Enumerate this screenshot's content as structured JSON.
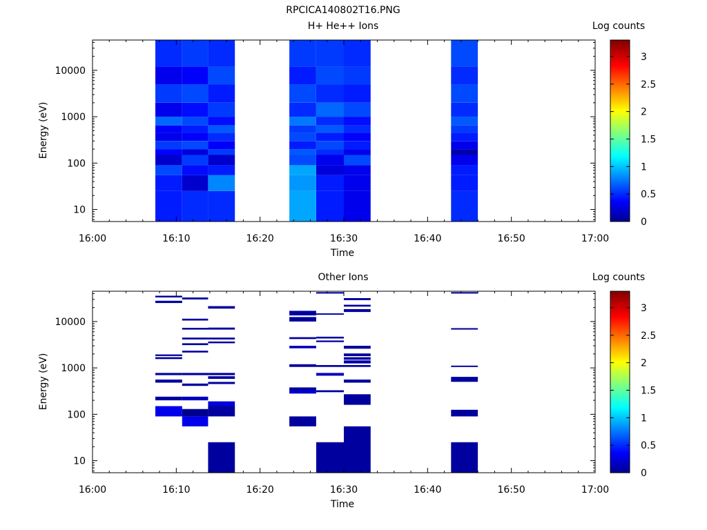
{
  "figure_title": "RPCICA140802T16.PNG",
  "chart_data": [
    {
      "type": "heatmap",
      "title": "H+ He++ Ions",
      "xlabel": "Time",
      "ylabel": "Energy (eV)",
      "colorbar_label": "Log counts",
      "x_ticks": [
        "16:00",
        "16:10",
        "16:20",
        "16:30",
        "16:40",
        "16:50",
        "17:00"
      ],
      "x_range_min": [
        0,
        60
      ],
      "y_scale": "log",
      "y_range": [
        5.5,
        45000
      ],
      "y_ticks": [
        10,
        100,
        1000,
        10000
      ],
      "y_tick_labels": [
        "10",
        "100",
        "1000",
        "10000"
      ],
      "colorbar_range": [
        0,
        3.3
      ],
      "colorbar_ticks": [
        "0",
        "0.5",
        "1",
        "1.5",
        "2",
        "2.5",
        "3"
      ],
      "colorbar_values": [
        0,
        0.5,
        1,
        1.5,
        2,
        2.5,
        3
      ],
      "time_bins_min": [
        [
          7.5,
          10.7
        ],
        [
          10.7,
          13.8
        ],
        [
          13.8,
          17
        ],
        [
          23.5,
          26.7
        ],
        [
          26.7,
          30
        ],
        [
          30,
          33.2
        ],
        [
          42.8,
          46
        ]
      ],
      "cells": [
        [
          [
            5.5,
            25,
            0.45
          ],
          [
            25,
            55,
            0.45
          ],
          [
            55,
            90,
            0.6
          ],
          [
            90,
            150,
            0.2
          ],
          [
            150,
            200,
            0.35
          ],
          [
            200,
            300,
            0.55
          ],
          [
            300,
            450,
            0.3
          ],
          [
            450,
            650,
            0.35
          ],
          [
            650,
            1000,
            0.7
          ],
          [
            1000,
            2000,
            0.3
          ],
          [
            2000,
            5000,
            0.55
          ],
          [
            5000,
            12000,
            0.3
          ],
          [
            12000,
            45000,
            0.5
          ]
        ],
        [
          [
            5.5,
            25,
            0.5
          ],
          [
            25,
            55,
            0.2
          ],
          [
            55,
            90,
            0.4
          ],
          [
            90,
            150,
            0.55
          ],
          [
            150,
            200,
            0.25
          ],
          [
            200,
            300,
            0.6
          ],
          [
            300,
            450,
            0.35
          ],
          [
            450,
            650,
            0.45
          ],
          [
            650,
            1000,
            0.6
          ],
          [
            1000,
            2000,
            0.4
          ],
          [
            2000,
            5000,
            0.6
          ],
          [
            5000,
            12000,
            0.35
          ],
          [
            12000,
            45000,
            0.55
          ]
        ],
        [
          [
            5.5,
            25,
            0.5
          ],
          [
            25,
            55,
            0.8
          ],
          [
            55,
            90,
            0.45
          ],
          [
            90,
            150,
            0.2
          ],
          [
            150,
            200,
            0.55
          ],
          [
            200,
            300,
            0.35
          ],
          [
            300,
            450,
            0.5
          ],
          [
            450,
            650,
            0.65
          ],
          [
            650,
            1000,
            0.4
          ],
          [
            1000,
            2000,
            0.55
          ],
          [
            2000,
            5000,
            0.45
          ],
          [
            5000,
            12000,
            0.6
          ],
          [
            12000,
            45000,
            0.5
          ]
        ],
        [
          [
            5.5,
            25,
            0.9
          ],
          [
            25,
            55,
            0.85
          ],
          [
            55,
            90,
            0.9
          ],
          [
            90,
            150,
            0.6
          ],
          [
            150,
            200,
            0.65
          ],
          [
            200,
            300,
            0.45
          ],
          [
            300,
            450,
            0.6
          ],
          [
            450,
            650,
            0.55
          ],
          [
            650,
            1000,
            0.75
          ],
          [
            1000,
            2000,
            0.5
          ],
          [
            2000,
            5000,
            0.6
          ],
          [
            5000,
            12000,
            0.45
          ],
          [
            12000,
            45000,
            0.55
          ]
        ],
        [
          [
            5.5,
            25,
            0.45
          ],
          [
            25,
            55,
            0.45
          ],
          [
            55,
            90,
            0.25
          ],
          [
            90,
            150,
            0.3
          ],
          [
            150,
            200,
            0.5
          ],
          [
            200,
            300,
            0.6
          ],
          [
            300,
            450,
            0.45
          ],
          [
            450,
            650,
            0.65
          ],
          [
            650,
            1000,
            0.5
          ],
          [
            1000,
            2000,
            0.7
          ],
          [
            2000,
            5000,
            0.5
          ],
          [
            5000,
            12000,
            0.6
          ],
          [
            12000,
            45000,
            0.55
          ]
        ],
        [
          [
            5.5,
            25,
            0.3
          ],
          [
            25,
            55,
            0.3
          ],
          [
            55,
            90,
            0.3
          ],
          [
            90,
            150,
            0.6
          ],
          [
            150,
            200,
            0.3
          ],
          [
            200,
            300,
            0.45
          ],
          [
            300,
            450,
            0.35
          ],
          [
            450,
            650,
            0.5
          ],
          [
            650,
            1000,
            0.4
          ],
          [
            1000,
            2000,
            0.6
          ],
          [
            2000,
            5000,
            0.45
          ],
          [
            5000,
            12000,
            0.55
          ],
          [
            12000,
            45000,
            0.5
          ]
        ],
        [
          [
            5.5,
            25,
            0.5
          ],
          [
            25,
            55,
            0.45
          ],
          [
            55,
            90,
            0.45
          ],
          [
            90,
            150,
            0.3
          ],
          [
            150,
            200,
            0.1
          ],
          [
            200,
            300,
            0.3
          ],
          [
            300,
            450,
            0.45
          ],
          [
            450,
            650,
            0.55
          ],
          [
            650,
            1000,
            0.65
          ],
          [
            1000,
            2000,
            0.5
          ],
          [
            2000,
            5000,
            0.6
          ],
          [
            5000,
            12000,
            0.5
          ],
          [
            12000,
            45000,
            0.6
          ]
        ]
      ]
    },
    {
      "type": "heatmap",
      "title": "Other Ions",
      "xlabel": "Time",
      "ylabel": "Energy (eV)",
      "colorbar_label": "Log counts",
      "x_ticks": [
        "16:00",
        "16:10",
        "16:20",
        "16:30",
        "16:40",
        "16:50",
        "17:00"
      ],
      "x_range_min": [
        0,
        60
      ],
      "y_scale": "log",
      "y_range": [
        5.5,
        45000
      ],
      "y_ticks": [
        10,
        100,
        1000,
        10000
      ],
      "y_tick_labels": [
        "10",
        "100",
        "1000",
        "10000"
      ],
      "colorbar_range": [
        0,
        3.3
      ],
      "colorbar_ticks": [
        "0",
        "0.5",
        "1",
        "1.5",
        "2",
        "2.5",
        "3"
      ],
      "colorbar_values": [
        0,
        0.5,
        1,
        1.5,
        2,
        2.5,
        3
      ],
      "time_bins_min": [
        [
          7.5,
          10.7
        ],
        [
          10.7,
          13.8
        ],
        [
          13.8,
          17
        ],
        [
          23.5,
          26.7
        ],
        [
          26.7,
          30
        ],
        [
          30,
          33.2
        ],
        [
          42.8,
          46
        ]
      ],
      "cells": [
        [
          [
            90,
            150,
            0.3
          ],
          [
            200,
            240,
            0.05
          ],
          [
            480,
            560,
            0.05
          ],
          [
            700,
            780,
            0.05
          ],
          [
            1550,
            1700,
            0.05
          ],
          [
            1800,
            1950,
            0.05
          ],
          [
            25000,
            28000,
            0.05
          ],
          [
            33000,
            36000,
            0.05
          ]
        ],
        [
          [
            55,
            90,
            0.3
          ],
          [
            90,
            130,
            0.0
          ],
          [
            200,
            240,
            0.15
          ],
          [
            410,
            460,
            0.05
          ],
          [
            700,
            780,
            0.05
          ],
          [
            2150,
            2350,
            0.05
          ],
          [
            3100,
            3400,
            0.05
          ],
          [
            4100,
            4500,
            0.05
          ],
          [
            6700,
            7300,
            0.05
          ],
          [
            10500,
            11500,
            0.05
          ],
          [
            30000,
            33000,
            0.05
          ]
        ],
        [
          [
            5.5,
            25,
            0.05
          ],
          [
            90,
            150,
            0.05
          ],
          [
            150,
            190,
            0.25
          ],
          [
            450,
            500,
            0.05
          ],
          [
            580,
            660,
            0.05
          ],
          [
            700,
            780,
            0.05
          ],
          [
            3400,
            3700,
            0.05
          ],
          [
            4100,
            4500,
            0.05
          ],
          [
            6700,
            7400,
            0.05
          ],
          [
            19000,
            21500,
            0.05
          ]
        ],
        [
          [
            55,
            90,
            0.05
          ],
          [
            280,
            330,
            0.2
          ],
          [
            330,
            380,
            0.05
          ],
          [
            1050,
            1200,
            0.05
          ],
          [
            2650,
            3000,
            0.15
          ],
          [
            4200,
            4600,
            0.05
          ],
          [
            10000,
            12500,
            0.05
          ],
          [
            13500,
            17000,
            0.05
          ]
        ],
        [
          [
            5.5,
            25,
            0.05
          ],
          [
            300,
            330,
            0.05
          ],
          [
            680,
            780,
            0.15
          ],
          [
            1050,
            1150,
            0.05
          ],
          [
            3600,
            3900,
            0.05
          ],
          [
            4300,
            4700,
            0.05
          ],
          [
            14000,
            15000,
            0.05
          ],
          [
            40000,
            43000,
            0.05
          ]
        ],
        [
          [
            5.5,
            55,
            0.05
          ],
          [
            160,
            270,
            0.05
          ],
          [
            480,
            560,
            0.05
          ],
          [
            1050,
            1150,
            0.05
          ],
          [
            1250,
            1450,
            0.05
          ],
          [
            1500,
            1700,
            0.05
          ],
          [
            1800,
            2050,
            0.05
          ],
          [
            2600,
            3000,
            0.05
          ],
          [
            16000,
            18500,
            0.05
          ],
          [
            21000,
            23000,
            0.05
          ],
          [
            29000,
            32000,
            0.05
          ]
        ],
        [
          [
            5.5,
            25,
            0.05
          ],
          [
            90,
            125,
            0.05
          ],
          [
            500,
            640,
            0.05
          ],
          [
            1050,
            1120,
            0.05
          ],
          [
            6700,
            7200,
            0.05
          ],
          [
            40000,
            43000,
            0.05
          ]
        ]
      ]
    }
  ]
}
